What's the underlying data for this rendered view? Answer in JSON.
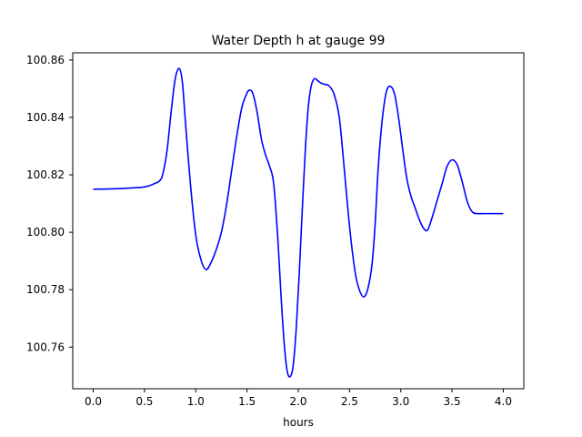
{
  "chart_data": {
    "type": "line",
    "title": "Water Depth h at gauge 99",
    "xlabel": "hours",
    "ylabel": "",
    "xlim": [
      -0.2,
      4.2
    ],
    "ylim": [
      100.7455,
      100.8625
    ],
    "grid": false,
    "legend": "none",
    "xticks": [
      0.0,
      0.5,
      1.0,
      1.5,
      2.0,
      2.5,
      3.0,
      3.5,
      4.0
    ],
    "xtick_labels": [
      "0.0",
      "0.5",
      "1.0",
      "1.5",
      "2.0",
      "2.5",
      "3.0",
      "3.5",
      "4.0"
    ],
    "yticks": [
      100.76,
      100.78,
      100.8,
      100.82,
      100.84,
      100.86
    ],
    "ytick_labels": [
      "100.76",
      "100.78",
      "100.80",
      "100.82",
      "100.84",
      "100.86"
    ],
    "series": [
      {
        "color": "#0000ff",
        "x": [
          0.0,
          0.25,
          0.5,
          0.6,
          0.65,
          0.68,
          0.72,
          0.76,
          0.8,
          0.84,
          0.87,
          0.9,
          0.95,
          1.0,
          1.05,
          1.1,
          1.15,
          1.2,
          1.25,
          1.3,
          1.35,
          1.4,
          1.45,
          1.5,
          1.53,
          1.56,
          1.6,
          1.64,
          1.68,
          1.72,
          1.76,
          1.8,
          1.83,
          1.86,
          1.89,
          1.92,
          1.95,
          1.98,
          2.01,
          2.04,
          2.07,
          2.1,
          2.13,
          2.16,
          2.19,
          2.22,
          2.26,
          2.3,
          2.35,
          2.4,
          2.44,
          2.48,
          2.52,
          2.56,
          2.6,
          2.64,
          2.68,
          2.72,
          2.75,
          2.78,
          2.82,
          2.86,
          2.9,
          2.94,
          2.98,
          3.02,
          3.06,
          3.1,
          3.14,
          3.18,
          3.22,
          3.26,
          3.3,
          3.35,
          3.4,
          3.45,
          3.5,
          3.55,
          3.6,
          3.65,
          3.7,
          3.75,
          3.8,
          3.85,
          3.9,
          3.95,
          4.0
        ],
        "y": [
          100.815,
          100.8152,
          100.8158,
          100.817,
          100.818,
          100.8205,
          100.8285,
          100.842,
          100.8535,
          100.857,
          100.852,
          100.838,
          100.816,
          100.799,
          100.7905,
          100.787,
          100.7895,
          100.794,
          100.8,
          100.8095,
          100.8215,
          100.8335,
          100.8435,
          100.8485,
          100.8495,
          100.848,
          100.8415,
          100.8325,
          100.827,
          100.823,
          100.817,
          100.798,
          100.779,
          100.7625,
          100.752,
          100.7497,
          100.7535,
          100.7665,
          100.786,
          100.8085,
          100.8295,
          100.8445,
          100.8515,
          100.8535,
          100.8528,
          100.852,
          100.8515,
          100.851,
          100.848,
          100.84,
          100.8255,
          100.8095,
          100.7955,
          100.785,
          100.7795,
          100.7775,
          100.7805,
          100.789,
          100.803,
          100.8225,
          100.8395,
          100.849,
          100.8508,
          100.848,
          100.8395,
          100.8285,
          100.8185,
          100.8125,
          100.8085,
          100.8045,
          100.8015,
          100.8007,
          100.8045,
          100.8105,
          100.8165,
          100.8228,
          100.8252,
          100.8235,
          100.8175,
          100.8105,
          100.807,
          100.8065,
          100.8065,
          100.8065,
          100.8065,
          100.8065,
          100.8065
        ]
      }
    ]
  }
}
